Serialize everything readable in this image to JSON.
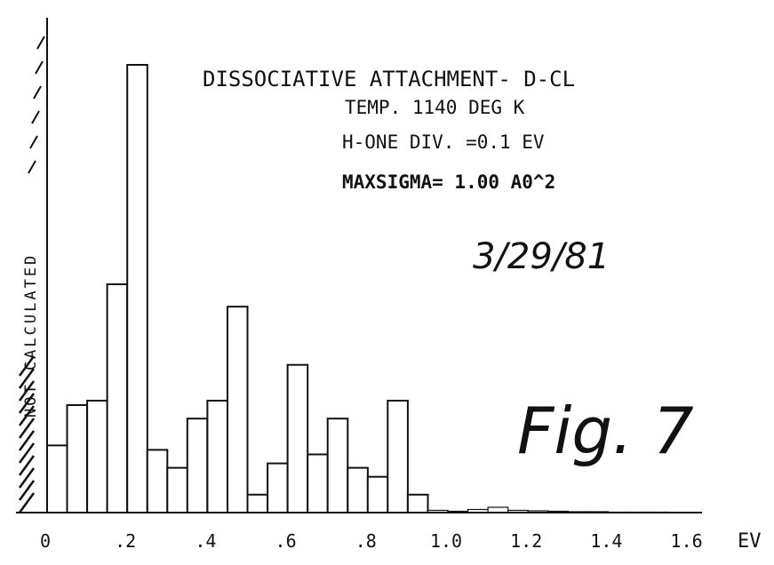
{
  "chart_data": {
    "type": "bar",
    "title": "DISSOCIATIVE ATTACHMENT- D-CL",
    "annotations": [
      "TEMP. 1140 DEG K",
      "H-ONE DIV. =0.1 EV",
      "MAXSIGMA= 1.00 A0^2"
    ],
    "ylabel": "NOT CALCULATED",
    "xlabel": "EV",
    "date": "3/29/81",
    "figure_label": "Fig. 7",
    "x_tick_labels": [
      "0",
      ".2",
      ".4",
      ".6",
      ".8",
      "1.0",
      "1.2",
      "1.4",
      "1.6"
    ],
    "x_tick_values": [
      0,
      0.2,
      0.4,
      0.6,
      0.8,
      1.0,
      1.2,
      1.4,
      1.6
    ],
    "bin_width": 0.05,
    "xlim": [
      0,
      1.7
    ],
    "ylim": [
      0,
      1.0
    ],
    "bin_starts": [
      0.0,
      0.05,
      0.1,
      0.15,
      0.2,
      0.25,
      0.3,
      0.35,
      0.4,
      0.45,
      0.5,
      0.55,
      0.6,
      0.65,
      0.7,
      0.75,
      0.8,
      0.85,
      0.9,
      0.95,
      1.0,
      1.05,
      1.1,
      1.15,
      1.2,
      1.25,
      1.3,
      1.35,
      1.4,
      1.45,
      1.5,
      1.55,
      1.6,
      1.65
    ],
    "values": [
      0.15,
      0.24,
      0.25,
      0.51,
      1.0,
      0.14,
      0.1,
      0.21,
      0.25,
      0.46,
      0.04,
      0.11,
      0.33,
      0.13,
      0.21,
      0.1,
      0.08,
      0.25,
      0.04,
      0.005,
      0.003,
      0.007,
      0.012,
      0.005,
      0.004,
      0.003,
      0.002,
      0.002,
      0.001,
      0.001,
      0.001,
      0.0,
      0.0,
      0.0
    ]
  }
}
